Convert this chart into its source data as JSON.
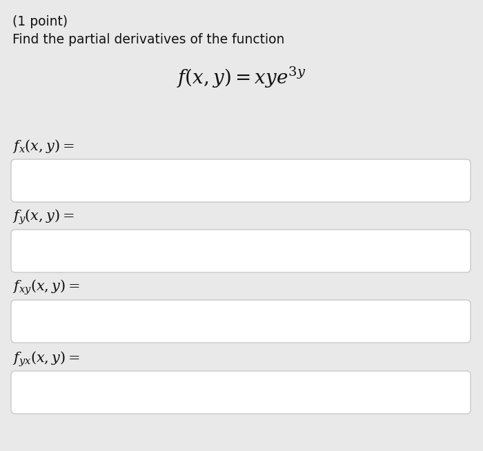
{
  "background_color": "#e9e9e9",
  "box_color": "#ffffff",
  "box_edge_color": "#c8c8c8",
  "text_color": "#111111",
  "title_line1": "(1 point)",
  "title_line2": "Find the partial derivatives of the function",
  "function_formula": "$f(x, y) = xye^{3y}$",
  "labels": [
    "$f_x(x, y) =$",
    "$f_y(x, y) =$",
    "$f_{xy}(x, y) =$",
    "$f_{yx}(x, y) =$"
  ],
  "label_fontsize": 15,
  "title_fontsize": 13.5,
  "formula_fontsize": 20,
  "fig_width": 7.0,
  "fig_height": 6.54,
  "dpi": 100
}
